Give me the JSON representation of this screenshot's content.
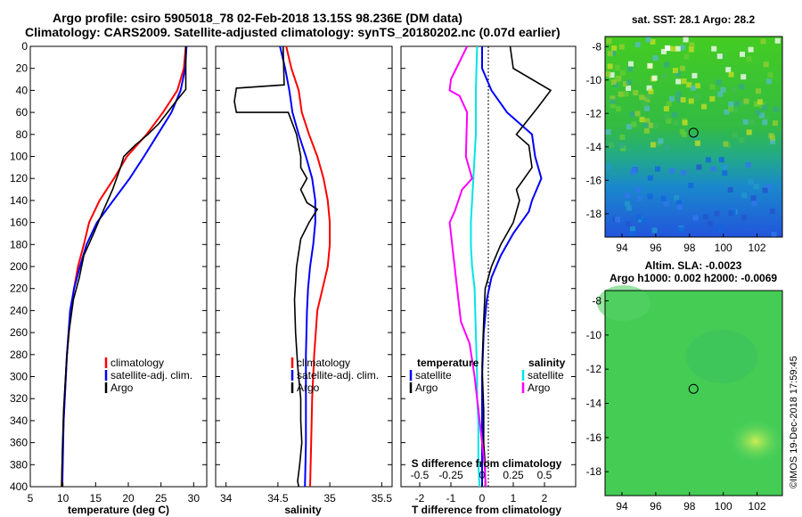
{
  "title_line1": "Argo profile: csiro 5905018_78 02-Feb-2018 13.15S 98.236E (DM data)",
  "title_line2": "Climatology: CARS2009. Satellite-adjusted climatology: synTS_20180202.nc (0.07d earlier)",
  "colors": {
    "climatology": "#ff0000",
    "satellite": "#0000ff",
    "argo": "#000000",
    "sat_salinity": "#00e5e5",
    "argo_salinity": "#ff00ff"
  },
  "chart_data": [
    {
      "type": "line",
      "name": "temperature",
      "xlabel": "temperature (deg C)",
      "ylabel": "",
      "xlim": [
        5,
        32
      ],
      "ylim": [
        400,
        0
      ],
      "xticks": [
        "5",
        "10",
        "15",
        "20",
        "25",
        "30"
      ],
      "yticks": [
        "0",
        "20",
        "40",
        "60",
        "80",
        "100",
        "120",
        "140",
        "160",
        "180",
        "200",
        "220",
        "240",
        "260",
        "280",
        "300",
        "320",
        "340",
        "360",
        "380",
        "400"
      ],
      "legend": [
        "climatology",
        "satellite-adj. clim.",
        "Argo"
      ],
      "series": [
        {
          "name": "climatology",
          "color": "red",
          "x": [
            28.8,
            28.5,
            27.5,
            25.3,
            22.8,
            19.8,
            17.8,
            15.6,
            14.0,
            13.2,
            12.3,
            11.7,
            11.2,
            10.6,
            10.1,
            9.8
          ],
          "y": [
            0,
            20,
            40,
            60,
            80,
            100,
            120,
            140,
            160,
            180,
            200,
            220,
            240,
            280,
            340,
            400
          ]
        },
        {
          "name": "satellite-adj. clim.",
          "color": "blue",
          "x": [
            28.9,
            28.7,
            28.0,
            26.6,
            24.5,
            22.4,
            20.2,
            17.7,
            15.2,
            13.6,
            12.6,
            11.7,
            11.1,
            10.6,
            10.1,
            9.9
          ],
          "y": [
            0,
            20,
            40,
            60,
            80,
            100,
            120,
            140,
            160,
            180,
            200,
            220,
            240,
            280,
            340,
            400
          ]
        },
        {
          "name": "Argo",
          "color": "black",
          "x": [
            28.8,
            28.8,
            28.8,
            28.8,
            27.3,
            26.0,
            24.7,
            23.0,
            21.0,
            19.3,
            18.8,
            17.6,
            16.1,
            14.7,
            13.2,
            12.5,
            11.6,
            10.9,
            10.5,
            10.1,
            9.9,
            9.8
          ],
          "y": [
            0,
            20,
            30,
            39,
            50,
            60,
            70,
            80,
            90,
            100,
            110,
            130,
            150,
            170,
            190,
            210,
            230,
            260,
            290,
            330,
            370,
            400
          ]
        }
      ]
    },
    {
      "type": "line",
      "name": "salinity",
      "xlabel": "salinity",
      "ylabel": "",
      "xlim": [
        33.9,
        35.6
      ],
      "ylim": [
        400,
        0
      ],
      "xticks": [
        "34",
        "34.5",
        "35",
        "35.5"
      ],
      "legend": [
        "climatology",
        "satellite-adj. clim.",
        "Argo"
      ],
      "series": [
        {
          "name": "climatology",
          "color": "red",
          "x": [
            34.58,
            34.63,
            34.7,
            34.73,
            34.8,
            34.88,
            34.94,
            34.98,
            35.0,
            35.0,
            34.98,
            34.93,
            34.88,
            34.85,
            34.83,
            34.82,
            34.81
          ],
          "y": [
            0,
            20,
            40,
            60,
            80,
            100,
            120,
            140,
            160,
            180,
            200,
            220,
            240,
            280,
            320,
            360,
            400
          ]
        },
        {
          "name": "satellite-adj. clim.",
          "color": "blue",
          "x": [
            34.52,
            34.57,
            34.61,
            34.64,
            34.7,
            34.77,
            34.83,
            34.86,
            34.86,
            34.84,
            34.81,
            34.79,
            34.78,
            34.77,
            34.77,
            34.77,
            34.76
          ],
          "y": [
            0,
            20,
            40,
            60,
            80,
            100,
            120,
            140,
            160,
            180,
            200,
            220,
            240,
            280,
            320,
            360,
            400
          ]
        },
        {
          "name": "Argo",
          "color": "black",
          "x": [
            34.55,
            34.56,
            34.1,
            34.08,
            34.1,
            34.6,
            34.68,
            34.72,
            34.72,
            34.78,
            34.72,
            34.78,
            34.88,
            34.8,
            34.72,
            34.68,
            34.66,
            34.67,
            34.69,
            34.72,
            34.72,
            34.73,
            34.71,
            34.69,
            34.7
          ],
          "y": [
            0,
            35,
            38,
            50,
            60,
            60,
            80,
            100,
            110,
            120,
            130,
            142,
            148,
            160,
            175,
            200,
            230,
            260,
            290,
            320,
            340,
            360,
            380,
            395,
            400
          ]
        }
      ]
    },
    {
      "type": "line",
      "name": "difference from climatology",
      "xlabel": "T difference from climatology",
      "top_axis_label": "S difference from climatology",
      "xlim": [
        -2.6,
        3.0
      ],
      "ylim": [
        400,
        0
      ],
      "xticks": [
        "-2",
        "-1",
        "0",
        "1",
        "2"
      ],
      "top_xticks": [
        "-0.5",
        "-0.25",
        "0",
        "0.25",
        "0.5"
      ],
      "legend_groups": [
        "temperature",
        "salinity"
      ],
      "legend_temperature": [
        "satellite",
        "Argo"
      ],
      "legend_salinity": [
        "satellite",
        "Argo"
      ],
      "series": [
        {
          "name": "T satellite",
          "color": "blue",
          "x": [
            0.0,
            0.0,
            0.3,
            0.8,
            1.6,
            1.7,
            1.8,
            1.9,
            1.6,
            1.5,
            1.0,
            0.6,
            0.3,
            0.15,
            0.05,
            0.0,
            0.0,
            0.0,
            0.0,
            0.0
          ],
          "y": [
            0,
            20,
            40,
            60,
            80,
            100,
            110,
            120,
            140,
            150,
            170,
            190,
            210,
            230,
            260,
            300,
            330,
            360,
            380,
            400
          ]
        },
        {
          "name": "T Argo",
          "color": "black",
          "x": [
            0.9,
            1.0,
            2.2,
            1.8,
            1.1,
            1.5,
            1.6,
            1.1,
            1.2,
            1.0,
            0.6,
            0.3,
            0.1,
            0.05,
            0.0,
            0.05,
            0.05,
            0.1,
            0.1
          ],
          "y": [
            0,
            20,
            40,
            55,
            80,
            90,
            110,
            130,
            140,
            160,
            180,
            200,
            220,
            250,
            290,
            330,
            360,
            380,
            400
          ]
        },
        {
          "name": "S satellite",
          "color": "cyan",
          "x": [
            -0.04,
            -0.05,
            -0.05,
            -0.06,
            -0.07,
            -0.08,
            -0.09,
            -0.09,
            -0.08,
            -0.06,
            -0.05,
            -0.04,
            -0.04,
            -0.03,
            -0.03,
            -0.02
          ],
          "y": [
            0,
            40,
            80,
            100,
            120,
            140,
            160,
            180,
            200,
            220,
            260,
            300,
            320,
            340,
            380,
            400
          ]
        },
        {
          "name": "S Argo",
          "color": "magenta",
          "x": [
            -0.12,
            -0.25,
            -0.26,
            -0.18,
            -0.12,
            -0.13,
            -0.08,
            -0.12,
            -0.16,
            -0.22,
            -0.26,
            -0.25,
            -0.24,
            -0.22,
            -0.2,
            -0.17,
            -0.1,
            -0.06,
            -0.03,
            0.0,
            0.02,
            0.03
          ],
          "y": [
            0,
            30,
            40,
            45,
            60,
            100,
            120,
            125,
            130,
            150,
            160,
            170,
            180,
            200,
            220,
            250,
            270,
            300,
            330,
            360,
            380,
            400
          ]
        }
      ]
    },
    {
      "type": "heatmap",
      "name": "sst map",
      "title": "sat. SST: 28.1 Argo: 28.2",
      "xlim": [
        93,
        103.5
      ],
      "ylim": [
        -19.4,
        -7.4
      ],
      "xticks": [
        "94",
        "96",
        "98",
        "100",
        "102"
      ],
      "yticks": [
        "-8",
        "-10",
        "-12",
        "-14",
        "-16",
        "-18"
      ],
      "profile_lon": 98.236,
      "profile_lat": -13.15
    },
    {
      "type": "heatmap",
      "name": "sla map",
      "title_line1": "Altim. SLA: -0.0023",
      "title_line2": "Argo h1000: 0.002 h2000: -0.0069",
      "xlim": [
        93,
        103.5
      ],
      "ylim": [
        -19.4,
        -7.4
      ],
      "xticks": [
        "94",
        "96",
        "98",
        "100",
        "102"
      ],
      "yticks": [
        "-8",
        "-10",
        "-12",
        "-14",
        "-16",
        "-18"
      ],
      "profile_lon": 98.236,
      "profile_lat": -13.15
    }
  ],
  "watermark": "©IMOS 19-Dec-2018 17:59:45"
}
